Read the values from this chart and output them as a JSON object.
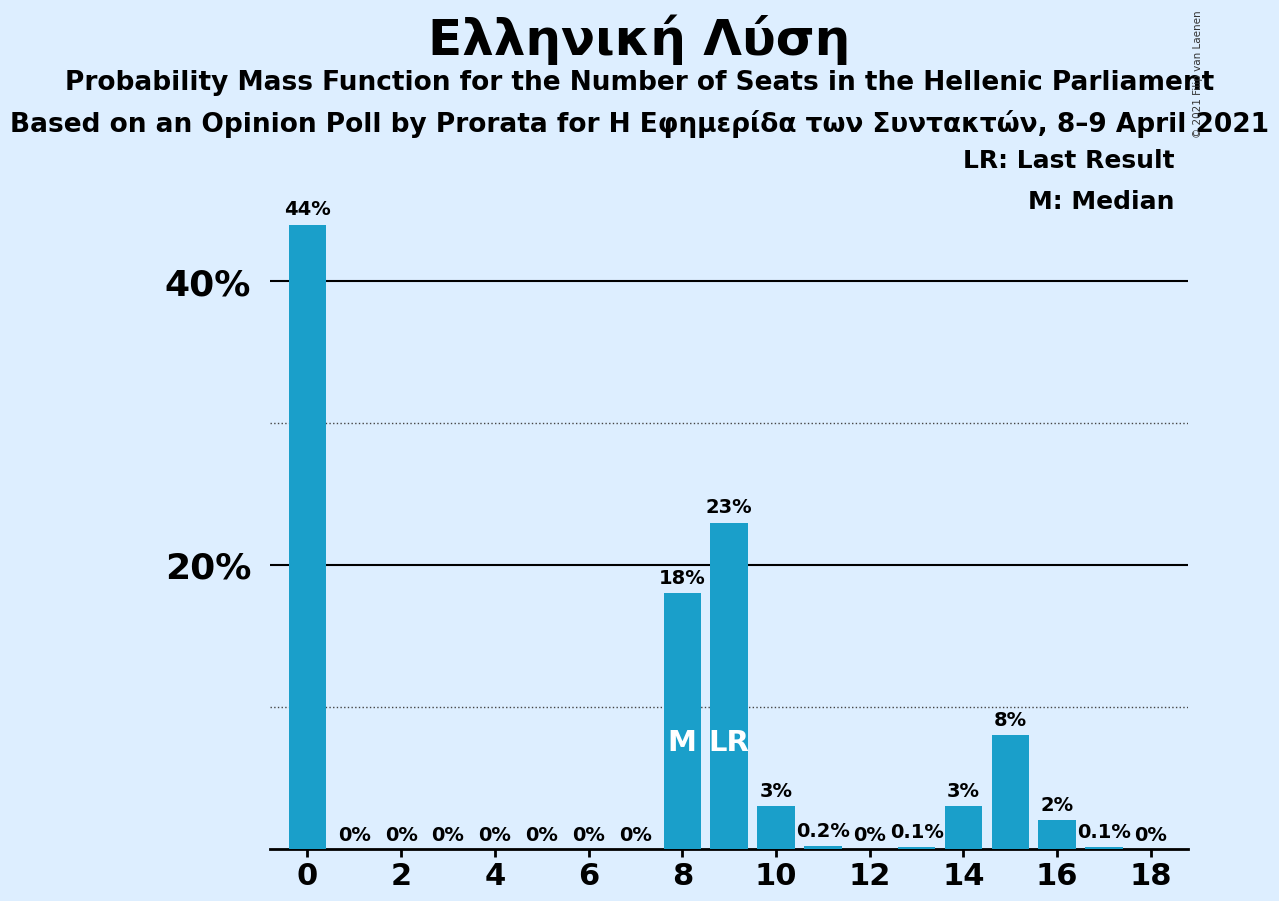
{
  "title": "Ελληνική Λύση",
  "subtitle1": "Probability Mass Function for the Number of Seats in the Hellenic Parliament",
  "subtitle2": "Based on an Opinion Poll by Prorata for Η Εφημερίδα των Συντακτών, 8–9 April 2021",
  "copyright": "© 2021 Filip van Laenen",
  "legend_lr": "LR: Last Result",
  "legend_m": "M: Median",
  "seats": [
    0,
    1,
    2,
    3,
    4,
    5,
    6,
    7,
    8,
    9,
    10,
    11,
    12,
    13,
    14,
    15,
    16,
    17,
    18
  ],
  "probabilities": [
    0.44,
    0.0,
    0.0,
    0.0,
    0.0,
    0.0,
    0.0,
    0.0,
    0.18,
    0.23,
    0.03,
    0.002,
    0.0,
    0.001,
    0.03,
    0.08,
    0.02,
    0.001,
    0.0
  ],
  "bar_labels": [
    "44%",
    "0%",
    "0%",
    "0%",
    "0%",
    "0%",
    "0%",
    "0%",
    "18%",
    "23%",
    "3%",
    "0.2%",
    "0%",
    "0.1%",
    "3%",
    "8%",
    "2%",
    "0.1%",
    "0%"
  ],
  "bar_color": "#1a9fca",
  "background_color": "#ddeeff",
  "median_seat": 8,
  "lr_seat": 9,
  "ylim": [
    0,
    0.48
  ],
  "solid_ytick_vals": [
    0.2,
    0.4
  ],
  "solid_ytick_labels": [
    "20%",
    "40%"
  ],
  "dotted_ytick_vals": [
    0.1,
    0.3
  ],
  "title_fontsize": 36,
  "subtitle_fontsize": 19,
  "bar_label_fontsize": 14,
  "marker_fontsize": 21,
  "ytick_fontsize": 26,
  "xtick_fontsize": 22,
  "legend_fontsize": 18
}
